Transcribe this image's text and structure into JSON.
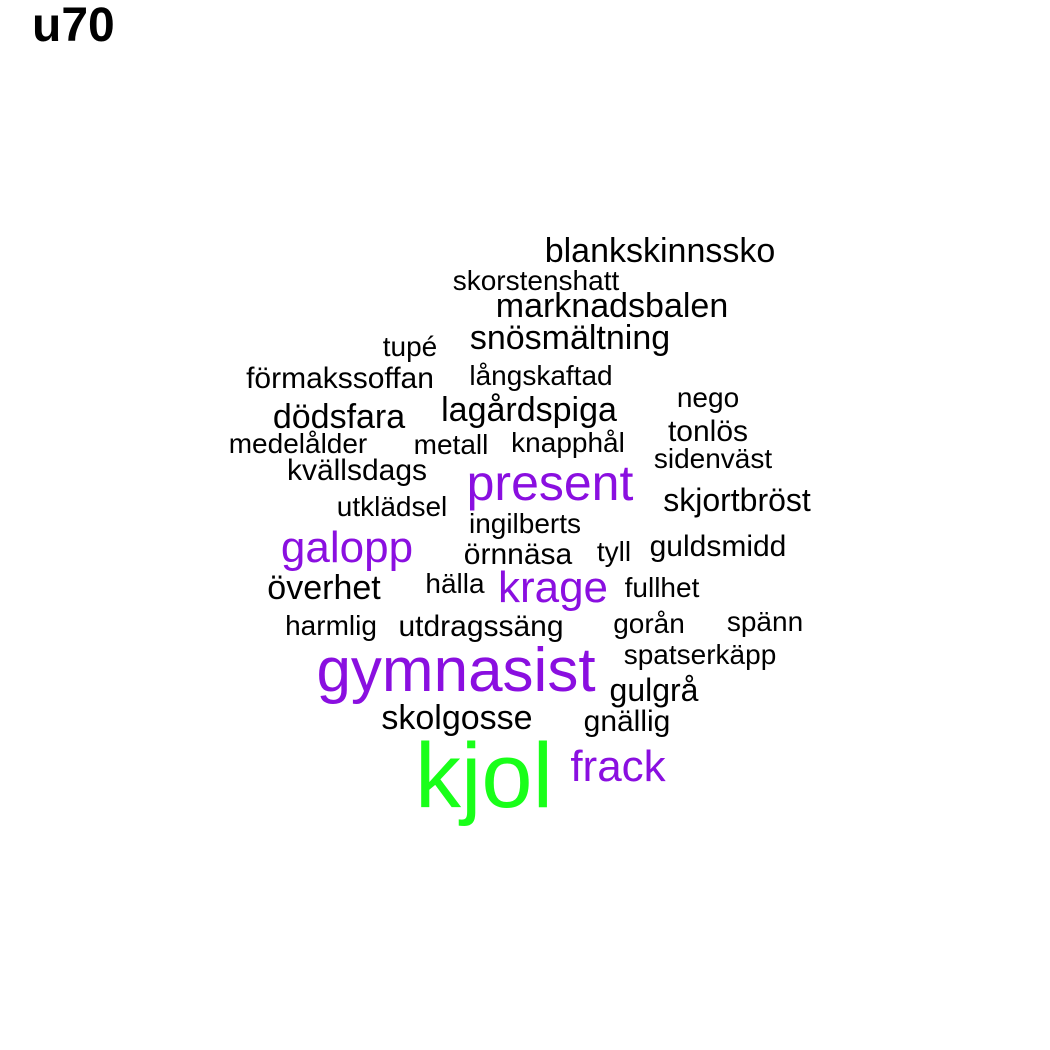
{
  "title": "u70",
  "colors": {
    "black": "#000000",
    "purple": "#8a0fe0",
    "green": "#19ff19"
  },
  "words": [
    {
      "text": "blankskinnssko",
      "weight": 1,
      "color": "black"
    },
    {
      "text": "skorstenshatt",
      "weight": 1,
      "color": "black"
    },
    {
      "text": "marknadsbalen",
      "weight": 1,
      "color": "black"
    },
    {
      "text": "snösmältning",
      "weight": 1,
      "color": "black"
    },
    {
      "text": "tupé",
      "weight": 1,
      "color": "black"
    },
    {
      "text": "förmakssoffan",
      "weight": 1,
      "color": "black"
    },
    {
      "text": "långskaftad",
      "weight": 1,
      "color": "black"
    },
    {
      "text": "nego",
      "weight": 1,
      "color": "black"
    },
    {
      "text": "dödsfara",
      "weight": 1,
      "color": "black"
    },
    {
      "text": "lagårdspiga",
      "weight": 1,
      "color": "black"
    },
    {
      "text": "tonlös",
      "weight": 1,
      "color": "black"
    },
    {
      "text": "medelålder",
      "weight": 1,
      "color": "black"
    },
    {
      "text": "metall",
      "weight": 1,
      "color": "black"
    },
    {
      "text": "knapphål",
      "weight": 1,
      "color": "black"
    },
    {
      "text": "sidenväst",
      "weight": 1,
      "color": "black"
    },
    {
      "text": "kvällsdags",
      "weight": 1,
      "color": "black"
    },
    {
      "text": "present",
      "weight": 2,
      "color": "purple"
    },
    {
      "text": "skjortbröst",
      "weight": 1,
      "color": "black"
    },
    {
      "text": "utklädsel",
      "weight": 1,
      "color": "black"
    },
    {
      "text": "ingilberts",
      "weight": 1,
      "color": "black"
    },
    {
      "text": "galopp",
      "weight": 2,
      "color": "purple"
    },
    {
      "text": "örnnäsa",
      "weight": 1,
      "color": "black"
    },
    {
      "text": "tyll",
      "weight": 1,
      "color": "black"
    },
    {
      "text": "guldsmidd",
      "weight": 1,
      "color": "black"
    },
    {
      "text": "överhet",
      "weight": 1,
      "color": "black"
    },
    {
      "text": "hälla",
      "weight": 1,
      "color": "black"
    },
    {
      "text": "krage",
      "weight": 2,
      "color": "purple"
    },
    {
      "text": "fullhet",
      "weight": 1,
      "color": "black"
    },
    {
      "text": "harmlig",
      "weight": 1,
      "color": "black"
    },
    {
      "text": "utdragssäng",
      "weight": 1,
      "color": "black"
    },
    {
      "text": "gorån",
      "weight": 1,
      "color": "black"
    },
    {
      "text": "spänn",
      "weight": 1,
      "color": "black"
    },
    {
      "text": "gymnasist",
      "weight": 3,
      "color": "purple"
    },
    {
      "text": "spatserkäpp",
      "weight": 1,
      "color": "black"
    },
    {
      "text": "gulgrå",
      "weight": 1,
      "color": "black"
    },
    {
      "text": "skolgosse",
      "weight": 1,
      "color": "black"
    },
    {
      "text": "gnällig",
      "weight": 1,
      "color": "black"
    },
    {
      "text": "kjol",
      "weight": 4,
      "color": "green"
    },
    {
      "text": "frack",
      "weight": 2,
      "color": "purple"
    }
  ]
}
